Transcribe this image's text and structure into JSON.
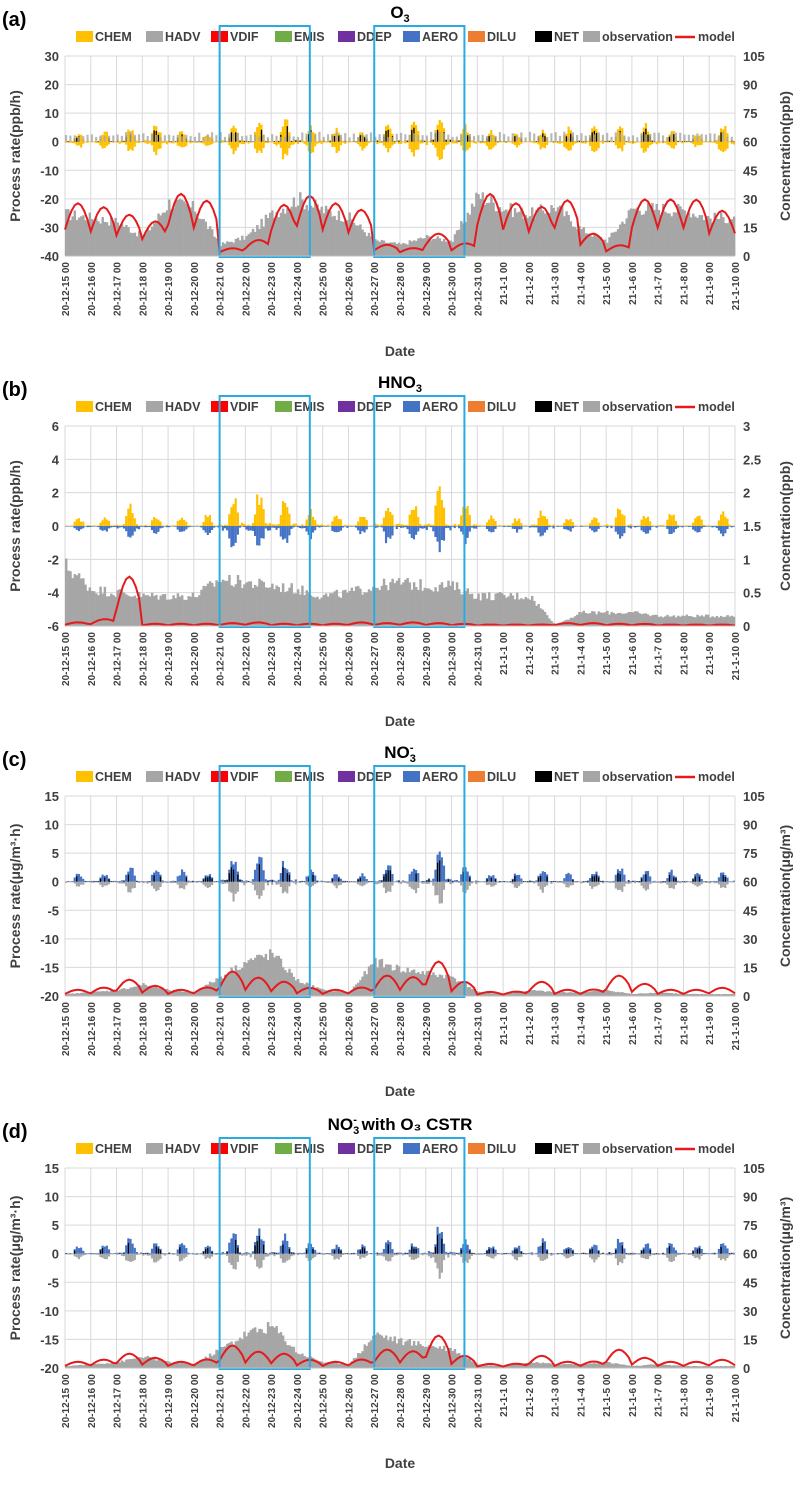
{
  "chart_data": [
    {
      "panel": "(a)",
      "title": "O",
      "title_sub": "3",
      "title_sup": "",
      "title_suffix": "",
      "type": "bar",
      "ylabel_left": "Process rate(ppb/h)",
      "ylabel_right": "Concentration(ppb)",
      "xlabel": "Date",
      "left_ticks": [
        "30",
        "20",
        "10",
        "0",
        "-10",
        "-20",
        "-30",
        "-40"
      ],
      "right_ticks": [
        "105",
        "90",
        "75",
        "60",
        "45",
        "30",
        "15",
        "0"
      ],
      "ylim_left": [
        -40,
        30
      ],
      "ylim_right": [
        0,
        105
      ],
      "highlight_windows": [
        [
          6,
          9.5
        ],
        [
          12,
          15.5
        ]
      ],
      "peak_amp": [
        3,
        4,
        5,
        6,
        4,
        3,
        6,
        7,
        10,
        6,
        5,
        4,
        6,
        7,
        9,
        6,
        4,
        3,
        4,
        5,
        6,
        5,
        6,
        4,
        3,
        7
      ],
      "obs_profile": [
        22,
        20,
        18,
        10,
        28,
        25,
        6,
        10,
        22,
        30,
        24,
        20,
        8,
        6,
        10,
        8,
        32,
        25,
        22,
        26,
        14,
        8,
        25,
        25,
        24,
        20
      ],
      "model_profile": [
        28,
        26,
        22,
        18,
        33,
        30,
        4,
        8,
        27,
        32,
        28,
        25,
        6,
        4,
        12,
        6,
        33,
        28,
        26,
        30,
        12,
        5,
        30,
        30,
        30,
        24
      ]
    },
    {
      "panel": "(b)",
      "title": "HNO",
      "title_sub": "3",
      "title_sup": "",
      "title_suffix": "",
      "type": "bar",
      "ylabel_left": "Process rate(ppb/h)",
      "ylabel_right": "Concentration(ppb)",
      "xlabel": "Date",
      "left_ticks": [
        "6",
        "4",
        "2",
        "0",
        "-2",
        "-4",
        "-6"
      ],
      "right_ticks": [
        "3",
        "2.5",
        "2",
        "1.5",
        "1",
        "0.5",
        "0"
      ],
      "ylim_left": [
        -6,
        6
      ],
      "ylim_right": [
        0,
        3
      ],
      "highlight_windows": [
        [
          6,
          9.5
        ],
        [
          12,
          15.5
        ]
      ],
      "peak_amp": [
        0.5,
        0.6,
        1.3,
        0.7,
        0.6,
        0.7,
        2.0,
        2.0,
        1.6,
        1.0,
        0.8,
        0.7,
        1.5,
        1.3,
        2.3,
        1.4,
        0.6,
        0.5,
        1.0,
        0.5,
        0.5,
        1.2,
        0.7,
        0.8,
        0.7,
        0.9
      ],
      "obs_profile": [
        0.9,
        0.55,
        0.5,
        0.45,
        0.45,
        0.45,
        0.7,
        0.65,
        0.6,
        0.55,
        0.45,
        0.5,
        0.6,
        0.65,
        0.6,
        0.6,
        0.45,
        0.45,
        0.45,
        0.02,
        0.2,
        0.2,
        0.2,
        0.15,
        0.15,
        0.15
      ],
      "model_profile": [
        0.05,
        0.08,
        0.7,
        0.03,
        0.03,
        0.03,
        0.04,
        0.05,
        0.03,
        0.03,
        0.03,
        0.05,
        0.04,
        0.05,
        0.04,
        0.03,
        0.02,
        0.02,
        0.02,
        0.04,
        0.04,
        0.03,
        0.03,
        0.02,
        0.02,
        0.02
      ]
    },
    {
      "panel": "(c)",
      "title": "NO",
      "title_sub": "3",
      "title_sup": "-",
      "title_suffix": "",
      "type": "bar",
      "ylabel_left": "Process rate(μg/m³·h)",
      "ylabel_right": "Concentration(μg/m³)",
      "xlabel": "Date",
      "left_ticks": [
        "15",
        "10",
        "5",
        "0",
        "-5",
        "-10",
        "-15",
        "-20"
      ],
      "right_ticks": [
        "105",
        "90",
        "75",
        "60",
        "45",
        "30",
        "15",
        "0"
      ],
      "ylim_left": [
        -20,
        15
      ],
      "ylim_right": [
        0,
        105
      ],
      "highlight_windows": [
        [
          6,
          9.5
        ],
        [
          12,
          15.5
        ]
      ],
      "peak_amp": [
        1.5,
        1.5,
        3.0,
        2.5,
        2.0,
        1.5,
        4.5,
        4.5,
        4.0,
        2.0,
        1.5,
        1.5,
        3.0,
        3.0,
        6.0,
        3.0,
        1.5,
        1.5,
        2.5,
        1.5,
        2.0,
        3.0,
        2.0,
        2.0,
        1.5,
        2.0
      ],
      "obs_profile": [
        1,
        2,
        3,
        6,
        3,
        2,
        10,
        18,
        22,
        8,
        3,
        2,
        18,
        14,
        12,
        10,
        2,
        1,
        3,
        2,
        2,
        3,
        1,
        2,
        1,
        1
      ],
      "model_profile": [
        3,
        4,
        8,
        5,
        3,
        4,
        12,
        9,
        7,
        4,
        3,
        4,
        10,
        9,
        17,
        7,
        2,
        2,
        7,
        3,
        3,
        10,
        6,
        3,
        3,
        4
      ]
    },
    {
      "panel": "(d)",
      "title": "NO",
      "title_sub": "3",
      "title_sup": "-",
      "title_suffix": " with O₃ CSTR",
      "type": "bar",
      "ylabel_left": "Process rate(μg/m³·h)",
      "ylabel_right": "Concentration(μg/m³)",
      "xlabel": "Date",
      "left_ticks": [
        "15",
        "10",
        "5",
        "0",
        "-5",
        "-10",
        "-15",
        "-20"
      ],
      "right_ticks": [
        "105",
        "90",
        "75",
        "60",
        "45",
        "30",
        "15",
        "0"
      ],
      "ylim_left": [
        -20,
        15
      ],
      "ylim_right": [
        0,
        105
      ],
      "highlight_windows": [
        [
          6,
          9.5
        ],
        [
          12,
          15.5
        ]
      ],
      "peak_amp": [
        1.5,
        1.5,
        3.0,
        2.5,
        2.0,
        1.5,
        4.5,
        4.5,
        3.5,
        2.0,
        1.5,
        1.5,
        2.5,
        2.0,
        5.5,
        2.5,
        1.5,
        1.5,
        2.5,
        1.5,
        2.0,
        3.0,
        2.0,
        2.0,
        1.5,
        2.0
      ],
      "obs_profile": [
        1,
        2,
        3,
        6,
        3,
        2,
        10,
        18,
        22,
        8,
        3,
        2,
        18,
        14,
        12,
        10,
        2,
        1,
        3,
        2,
        2,
        3,
        1,
        2,
        1,
        1
      ],
      "model_profile": [
        3,
        4,
        7,
        5,
        3,
        4,
        11,
        8,
        7,
        4,
        3,
        4,
        9,
        8,
        16,
        6,
        2,
        2,
        6,
        3,
        3,
        9,
        5,
        3,
        3,
        4
      ]
    }
  ],
  "legend": [
    {
      "name": "CHEM",
      "color": "#FFC000",
      "kind": "box"
    },
    {
      "name": "HADV",
      "color": "#A6A6A6",
      "kind": "box"
    },
    {
      "name": "VDIF",
      "color": "#FF0000",
      "kind": "box"
    },
    {
      "name": "EMIS",
      "color": "#70AD47",
      "kind": "box"
    },
    {
      "name": "DDEP",
      "color": "#7030A0",
      "kind": "box"
    },
    {
      "name": "AERO",
      "color": "#4472C4",
      "kind": "box"
    },
    {
      "name": "DILU",
      "color": "#ED7D31",
      "kind": "box"
    },
    {
      "name": "NET",
      "color": "#000000",
      "kind": "box"
    },
    {
      "name": "observation",
      "color": "#A6A6A6",
      "kind": "box"
    },
    {
      "name": "model",
      "color": "#FF0000",
      "kind": "line"
    }
  ],
  "dates": [
    "20-12-15 00",
    "20-12-16 00",
    "20-12-17 00",
    "20-12-18 00",
    "20-12-19 00",
    "20-12-20 00",
    "20-12-21 00",
    "20-12-22 00",
    "20-12-23 00",
    "20-12-24 00",
    "20-12-25 00",
    "20-12-26 00",
    "20-12-27 00",
    "20-12-28 00",
    "20-12-29 00",
    "20-12-30 00",
    "20-12-31 00",
    "21-1-1 00",
    "21-1-2 00",
    "21-1-3 00",
    "21-1-4 00",
    "21-1-5 00",
    "21-1-6 00",
    "21-1-7 00",
    "21-1-8 00",
    "21-1-9 00",
    "21-1-10 00"
  ],
  "colors": {
    "chem": "#FFC000",
    "hadv": "#A6A6A6",
    "vdif": "#FF0000",
    "aero": "#4472C4",
    "net": "#000000",
    "obs": "#A6A6A6",
    "model": "#E41A1C",
    "highlight": "#29ABE2",
    "grid": "#D9D9D9"
  }
}
